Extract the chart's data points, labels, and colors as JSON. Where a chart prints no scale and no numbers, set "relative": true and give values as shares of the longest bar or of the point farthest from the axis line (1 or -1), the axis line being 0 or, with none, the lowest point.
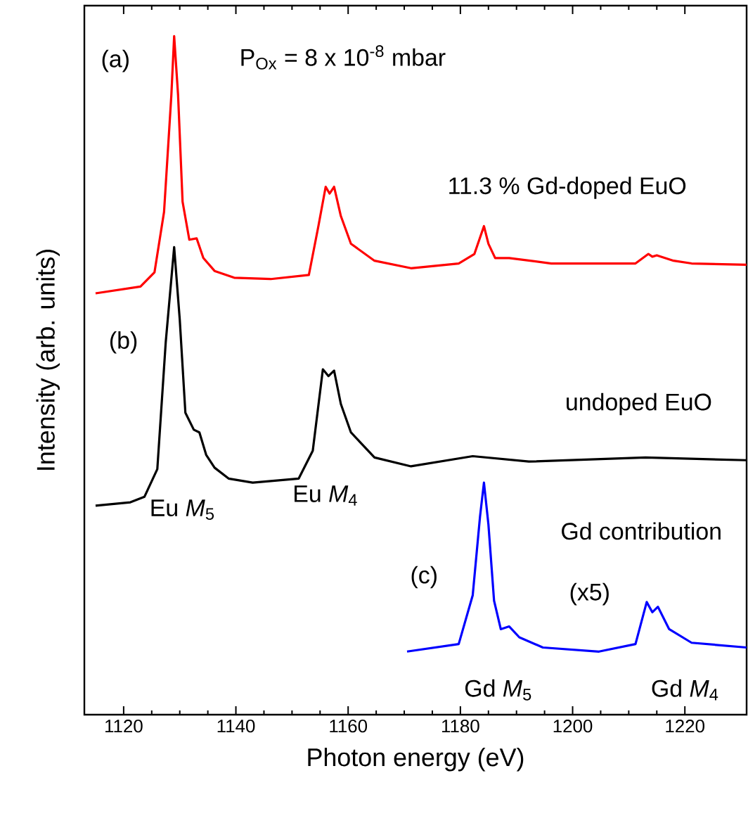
{
  "chart_data": {
    "type": "line",
    "relative": true,
    "xlabel": "Photon energy (eV)",
    "ylabel": "Intensity (arb. units)",
    "xlim": [
      1113,
      1231
    ],
    "xticks": [
      1120,
      1140,
      1160,
      1180,
      1200,
      1220
    ],
    "grid": false,
    "marker": "none",
    "line_style": "solid",
    "series": [
      {
        "color": "#ff0000",
        "x": [
          1115,
          1123,
          1125.5,
          1127.2,
          1128.5,
          1129,
          1129.7,
          1130.5,
          1131.7,
          1133,
          1134.2,
          1136.2,
          1139.7,
          1146.2,
          1153,
          1154.7,
          1156,
          1156.7,
          1157.5,
          1158.7,
          1160.5,
          1164.7,
          1171.2,
          1179.7,
          1182.5,
          1184.2,
          1185,
          1186.2,
          1188.7,
          1196.2,
          1211.2,
          1213.5,
          1214.2,
          1215,
          1218,
          1221.2,
          1231
        ],
        "values": [
          0.621,
          0.631,
          0.652,
          0.741,
          0.913,
          1.0,
          0.913,
          0.756,
          0.7,
          0.702,
          0.673,
          0.654,
          0.644,
          0.642,
          0.648,
          0.72,
          0.778,
          0.768,
          0.778,
          0.735,
          0.694,
          0.669,
          0.658,
          0.665,
          0.679,
          0.72,
          0.694,
          0.673,
          0.673,
          0.665,
          0.665,
          0.679,
          0.675,
          0.677,
          0.669,
          0.665,
          0.663
        ]
      },
      {
        "color": "#000000",
        "x": [
          1115,
          1121.2,
          1123.7,
          1126,
          1127.5,
          1129,
          1130,
          1131,
          1132.5,
          1133.5,
          1134.7,
          1136.2,
          1138.7,
          1143,
          1151.2,
          1153.7,
          1155.5,
          1156.5,
          1157.5,
          1158.7,
          1160.5,
          1164.7,
          1171.2,
          1182.2,
          1192.2,
          1213,
          1231
        ],
        "values": [
          0.308,
          0.313,
          0.321,
          0.362,
          0.549,
          0.689,
          0.582,
          0.445,
          0.42,
          0.416,
          0.383,
          0.364,
          0.348,
          0.342,
          0.348,
          0.389,
          0.509,
          0.499,
          0.507,
          0.458,
          0.416,
          0.379,
          0.366,
          0.381,
          0.373,
          0.379,
          0.375
        ]
      },
      {
        "color": "#0000ff",
        "x": [
          1170.5,
          1179.7,
          1182.2,
          1183.5,
          1184.2,
          1185,
          1186,
          1187.2,
          1188.7,
          1190.5,
          1194.7,
          1204.7,
          1211.2,
          1213.2,
          1214.2,
          1215.2,
          1217.2,
          1221.2,
          1231
        ],
        "values": [
          0.093,
          0.104,
          0.176,
          0.292,
          0.342,
          0.28,
          0.168,
          0.126,
          0.13,
          0.114,
          0.099,
          0.093,
          0.104,
          0.166,
          0.151,
          0.159,
          0.126,
          0.106,
          0.099
        ]
      }
    ],
    "annotations": [
      "(a)",
      "P$_{Ox}$ = 8 x 10$^{-8}$ mbar",
      "11.3 % Gd-doped EuO",
      "(b)",
      "undoped EuO",
      "Eu *M*$_{5}$",
      "Eu *M*$_{4}$",
      "Gd contribution",
      "(c)",
      "(x5)",
      "Gd *M*$_{5}$",
      "Gd *M*$_{4}$"
    ]
  }
}
